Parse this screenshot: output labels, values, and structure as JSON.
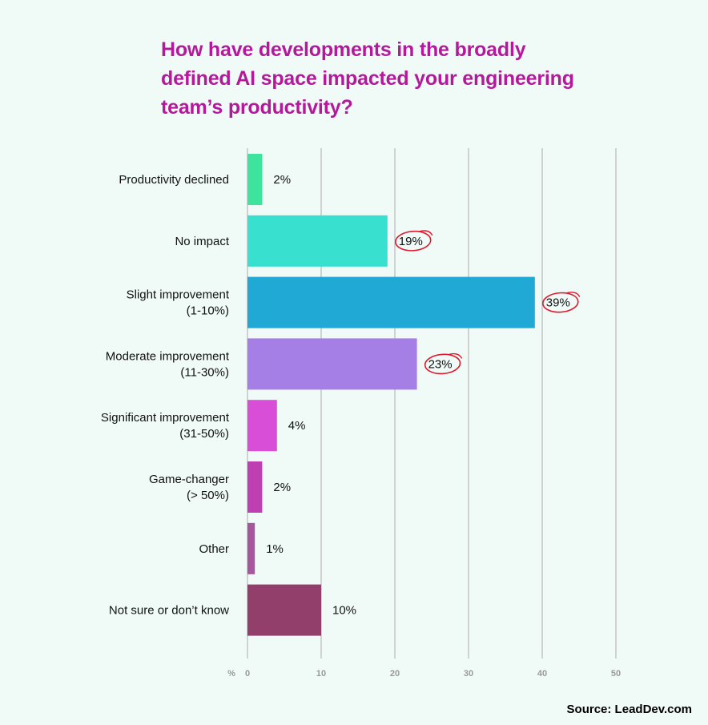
{
  "title_lines": [
    "How have developments in the broadly",
    "defined AI space impacted your engineering",
    "team’s productivity?"
  ],
  "source": "Source: LeadDev.com",
  "colors": {
    "title": "#b4199c",
    "highlight_circle": "#e0192e",
    "grid": "#ababab",
    "background": "#f0fbf8"
  },
  "chart_data": {
    "type": "bar",
    "orientation": "horizontal",
    "title": "How have developments in the broadly defined AI space impacted your engineering team’s productivity?",
    "xlabel": "%",
    "ylabel": "",
    "xlim": [
      0,
      50
    ],
    "xticks": [
      0,
      10,
      20,
      30,
      40,
      50
    ],
    "grid": "vertical",
    "categories": [
      [
        "Productivity declined"
      ],
      [
        "No impact"
      ],
      [
        "Slight improvement",
        "(1-10%)"
      ],
      [
        "Moderate improvement",
        "(11-30%)"
      ],
      [
        "Significant improvement",
        "(31-50%)"
      ],
      [
        "Game-changer",
        "(> 50%)"
      ],
      [
        "Other"
      ],
      [
        "Not sure or don’t know"
      ]
    ],
    "values": [
      2,
      19,
      39,
      23,
      4,
      2,
      1,
      10
    ],
    "value_labels": [
      "2%",
      "19%",
      "39%",
      "23%",
      "4%",
      "2%",
      "1%",
      "10%"
    ],
    "bar_colors": [
      "#3de49e",
      "#38e0cf",
      "#1fa9d4",
      "#a57fe6",
      "#d84ed6",
      "#bd3fb2",
      "#a7559d",
      "#923f6c"
    ],
    "highlighted": [
      false,
      true,
      true,
      true,
      false,
      false,
      false,
      false
    ]
  }
}
